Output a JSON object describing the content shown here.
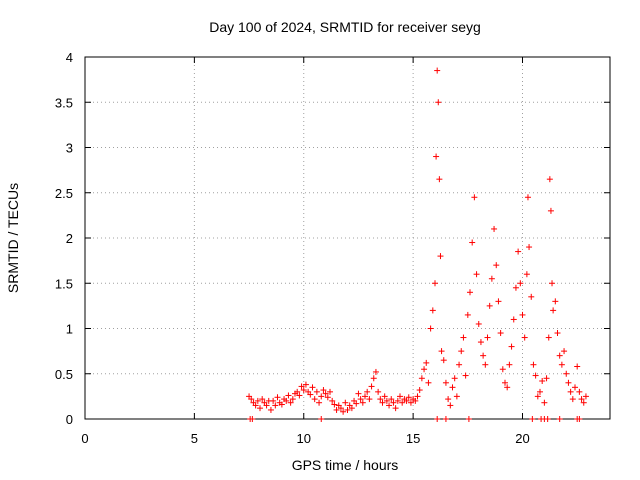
{
  "chart_data": {
    "type": "scatter",
    "title": "Day 100 of 2024, SRMTID for receiver seyg",
    "xlabel": "GPS time / hours",
    "ylabel": "SRMTID / TECUs",
    "xlim": [
      0,
      24
    ],
    "ylim": [
      0,
      4
    ],
    "xticks": [
      0,
      5,
      10,
      15,
      20
    ],
    "yticks": [
      0,
      0.5,
      1,
      1.5,
      2,
      2.5,
      3,
      3.5,
      4
    ],
    "x_tick_labels": [
      "0",
      "5",
      "10",
      "15",
      "20"
    ],
    "y_tick_labels": [
      "0",
      "0.5",
      "1",
      "1.5",
      "2",
      "2.5",
      "3",
      "3.5",
      "4"
    ],
    "grid": true,
    "marker": "+",
    "color": "#ff0000",
    "series": [
      {
        "name": "SRMTID",
        "points": [
          [
            7.5,
            0.25
          ],
          [
            7.6,
            0.22
          ],
          [
            7.7,
            0.18
          ],
          [
            7.8,
            0.15
          ],
          [
            7.9,
            0.2
          ],
          [
            8.0,
            0.12
          ],
          [
            8.1,
            0.22
          ],
          [
            8.2,
            0.18
          ],
          [
            8.3,
            0.15
          ],
          [
            8.4,
            0.2
          ],
          [
            8.5,
            0.1
          ],
          [
            8.6,
            0.2
          ],
          [
            8.7,
            0.15
          ],
          [
            8.8,
            0.24
          ],
          [
            8.9,
            0.18
          ],
          [
            9.0,
            0.16
          ],
          [
            9.1,
            0.22
          ],
          [
            9.2,
            0.2
          ],
          [
            9.3,
            0.26
          ],
          [
            9.4,
            0.18
          ],
          [
            9.5,
            0.22
          ],
          [
            9.6,
            0.28
          ],
          [
            9.7,
            0.3
          ],
          [
            9.8,
            0.26
          ],
          [
            9.9,
            0.36
          ],
          [
            10.0,
            0.32
          ],
          [
            10.1,
            0.38
          ],
          [
            10.2,
            0.3
          ],
          [
            10.3,
            0.27
          ],
          [
            10.4,
            0.35
          ],
          [
            10.5,
            0.22
          ],
          [
            10.6,
            0.3
          ],
          [
            10.7,
            0.18
          ],
          [
            10.8,
            0.25
          ],
          [
            10.9,
            0.32
          ],
          [
            11.0,
            0.28
          ],
          [
            11.1,
            0.24
          ],
          [
            11.2,
            0.3
          ],
          [
            11.3,
            0.2
          ],
          [
            11.4,
            0.16
          ],
          [
            11.5,
            0.1
          ],
          [
            11.6,
            0.15
          ],
          [
            11.7,
            0.12
          ],
          [
            11.8,
            0.08
          ],
          [
            11.9,
            0.18
          ],
          [
            12.0,
            0.1
          ],
          [
            12.1,
            0.15
          ],
          [
            12.2,
            0.12
          ],
          [
            12.3,
            0.2
          ],
          [
            12.4,
            0.17
          ],
          [
            12.5,
            0.28
          ],
          [
            12.6,
            0.22
          ],
          [
            12.7,
            0.18
          ],
          [
            12.8,
            0.25
          ],
          [
            12.9,
            0.3
          ],
          [
            13.0,
            0.22
          ],
          [
            13.1,
            0.36
          ],
          [
            13.2,
            0.45
          ],
          [
            13.3,
            0.52
          ],
          [
            13.4,
            0.3
          ],
          [
            13.5,
            0.22
          ],
          [
            13.6,
            0.18
          ],
          [
            13.7,
            0.25
          ],
          [
            13.8,
            0.2
          ],
          [
            13.9,
            0.15
          ],
          [
            14.0,
            0.22
          ],
          [
            14.1,
            0.18
          ],
          [
            14.2,
            0.12
          ],
          [
            14.3,
            0.2
          ],
          [
            14.4,
            0.25
          ],
          [
            14.5,
            0.18
          ],
          [
            14.6,
            0.22
          ],
          [
            14.7,
            0.2
          ],
          [
            14.8,
            0.24
          ],
          [
            14.9,
            0.18
          ],
          [
            15.0,
            0.22
          ],
          [
            15.1,
            0.2
          ],
          [
            15.2,
            0.25
          ],
          [
            15.3,
            0.32
          ],
          [
            15.4,
            0.45
          ],
          [
            15.5,
            0.55
          ],
          [
            15.6,
            0.62
          ],
          [
            15.7,
            0.4
          ],
          [
            15.8,
            1.0
          ],
          [
            15.9,
            1.2
          ],
          [
            16.0,
            1.5
          ],
          [
            16.05,
            2.9
          ],
          [
            16.1,
            3.85
          ],
          [
            16.15,
            3.5
          ],
          [
            16.2,
            2.65
          ],
          [
            16.25,
            1.8
          ],
          [
            16.3,
            0.75
          ],
          [
            16.4,
            0.65
          ],
          [
            16.5,
            0.4
          ],
          [
            16.6,
            0.22
          ],
          [
            16.7,
            0.15
          ],
          [
            16.8,
            0.35
          ],
          [
            16.9,
            0.45
          ],
          [
            17.0,
            0.25
          ],
          [
            17.1,
            0.6
          ],
          [
            17.2,
            0.75
          ],
          [
            17.3,
            0.9
          ],
          [
            17.4,
            0.48
          ],
          [
            17.5,
            1.15
          ],
          [
            17.6,
            1.4
          ],
          [
            17.7,
            1.95
          ],
          [
            17.8,
            2.45
          ],
          [
            17.9,
            1.6
          ],
          [
            18.0,
            1.05
          ],
          [
            18.1,
            0.85
          ],
          [
            18.2,
            0.7
          ],
          [
            18.3,
            0.6
          ],
          [
            18.4,
            0.9
          ],
          [
            18.5,
            1.25
          ],
          [
            18.6,
            1.55
          ],
          [
            18.7,
            2.1
          ],
          [
            18.8,
            1.7
          ],
          [
            18.9,
            1.3
          ],
          [
            19.0,
            0.95
          ],
          [
            19.1,
            0.55
          ],
          [
            19.2,
            0.4
          ],
          [
            19.3,
            0.35
          ],
          [
            19.4,
            0.6
          ],
          [
            19.5,
            0.8
          ],
          [
            19.6,
            1.1
          ],
          [
            19.7,
            1.45
          ],
          [
            19.8,
            1.85
          ],
          [
            19.9,
            1.5
          ],
          [
            20.0,
            1.15
          ],
          [
            20.1,
            0.9
          ],
          [
            20.2,
            1.6
          ],
          [
            20.25,
            2.45
          ],
          [
            20.3,
            1.9
          ],
          [
            20.4,
            1.35
          ],
          [
            20.5,
            0.6
          ],
          [
            20.6,
            0.48
          ],
          [
            20.7,
            0.25
          ],
          [
            20.8,
            0.3
          ],
          [
            20.9,
            0.42
          ],
          [
            21.0,
            0.18
          ],
          [
            21.1,
            0.45
          ],
          [
            21.2,
            0.9
          ],
          [
            21.25,
            2.65
          ],
          [
            21.3,
            2.3
          ],
          [
            21.35,
            1.5
          ],
          [
            21.4,
            1.2
          ],
          [
            21.5,
            1.3
          ],
          [
            21.6,
            0.95
          ],
          [
            21.7,
            0.7
          ],
          [
            21.8,
            0.6
          ],
          [
            21.9,
            0.75
          ],
          [
            22.0,
            0.5
          ],
          [
            22.1,
            0.4
          ],
          [
            22.2,
            0.3
          ],
          [
            22.3,
            0.22
          ],
          [
            22.4,
            0.35
          ],
          [
            22.5,
            0.58
          ],
          [
            22.6,
            0.3
          ],
          [
            22.7,
            0.22
          ],
          [
            22.8,
            0.18
          ],
          [
            22.9,
            0.25
          ],
          [
            7.55,
            0.0
          ],
          [
            7.65,
            0.0
          ],
          [
            10.8,
            0.0
          ],
          [
            16.1,
            0.0
          ],
          [
            16.5,
            0.0
          ],
          [
            17.55,
            0.0
          ],
          [
            20.45,
            0.0
          ],
          [
            20.85,
            0.0
          ],
          [
            21.0,
            0.0
          ],
          [
            21.15,
            0.0
          ],
          [
            21.7,
            0.0
          ],
          [
            22.5,
            0.0
          ],
          [
            22.6,
            0.0
          ]
        ]
      }
    ]
  }
}
